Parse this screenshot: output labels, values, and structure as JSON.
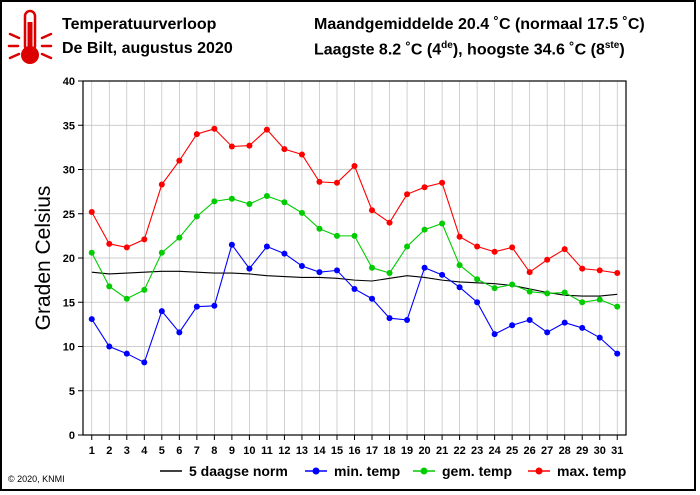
{
  "header": {
    "title": "Temperatuurverloop",
    "subtitle": "De Bilt, augustus 2020",
    "stat_line1": "Maandgemiddelde 20.4 ˚C (normaal 17.5 ˚C)",
    "stat_line2_a": "Laagste 8.2 ˚C (4",
    "stat_line2_sup1": "de",
    "stat_line2_b": "), hoogste 34.6 ˚C (8",
    "stat_line2_sup2": "ste",
    "stat_line2_c": ")"
  },
  "footer": {
    "copyright": "© 2020, KNMI"
  },
  "icons": {
    "thermometer": "thermometer-icon"
  },
  "chart_data": {
    "type": "line",
    "title": "Temperatuurverloop",
    "xlabel": "",
    "ylabel": "Graden Celsius",
    "xlim": [
      0.5,
      31.5
    ],
    "ylim": [
      0,
      40
    ],
    "yticks": [
      0,
      5,
      10,
      15,
      20,
      25,
      30,
      35,
      40
    ],
    "x": [
      1,
      2,
      3,
      4,
      5,
      6,
      7,
      8,
      9,
      10,
      11,
      12,
      13,
      14,
      15,
      16,
      17,
      18,
      19,
      20,
      21,
      22,
      23,
      24,
      25,
      26,
      27,
      28,
      29,
      30,
      31
    ],
    "grid": true,
    "legend_position": "bottom",
    "series": [
      {
        "name": "5 daagse norm",
        "color": "#000000",
        "markers": false,
        "values": [
          18.4,
          18.2,
          18.3,
          18.4,
          18.5,
          18.5,
          18.4,
          18.3,
          18.3,
          18.2,
          18.0,
          17.9,
          17.8,
          17.8,
          17.7,
          17.5,
          17.4,
          17.7,
          18.0,
          17.8,
          17.5,
          17.3,
          17.2,
          17.1,
          16.9,
          16.5,
          16.1,
          15.8,
          15.7,
          15.7,
          15.9
        ]
      },
      {
        "name": "min. temp",
        "color": "#0000ff",
        "markers": true,
        "values": [
          13.1,
          10.0,
          9.2,
          8.2,
          14.0,
          11.6,
          14.5,
          14.6,
          21.5,
          18.8,
          21.3,
          20.5,
          19.1,
          18.4,
          18.6,
          16.5,
          15.4,
          13.2,
          13.0,
          18.9,
          18.1,
          16.7,
          15.0,
          11.4,
          12.4,
          13.0,
          11.6,
          12.7,
          12.1,
          11.0,
          9.2
        ]
      },
      {
        "name": "gem. temp",
        "color": "#00cc00",
        "markers": true,
        "values": [
          20.6,
          16.8,
          15.4,
          16.4,
          20.6,
          22.3,
          24.7,
          26.4,
          26.7,
          26.1,
          27.0,
          26.3,
          25.1,
          23.3,
          22.5,
          22.5,
          18.9,
          18.3,
          21.3,
          23.2,
          23.9,
          19.2,
          17.6,
          16.6,
          17.0,
          16.2,
          16.0,
          16.1,
          15.0,
          15.3,
          14.5
        ]
      },
      {
        "name": "max. temp",
        "color": "#ff0000",
        "markers": true,
        "values": [
          25.2,
          21.6,
          21.2,
          22.1,
          28.3,
          31.0,
          34.0,
          34.6,
          32.6,
          32.7,
          34.5,
          32.3,
          31.7,
          28.6,
          28.5,
          30.4,
          25.4,
          24.0,
          27.2,
          28.0,
          28.5,
          22.4,
          21.3,
          20.7,
          21.2,
          18.4,
          19.8,
          21.0,
          18.8,
          18.6,
          18.3
        ]
      }
    ]
  }
}
